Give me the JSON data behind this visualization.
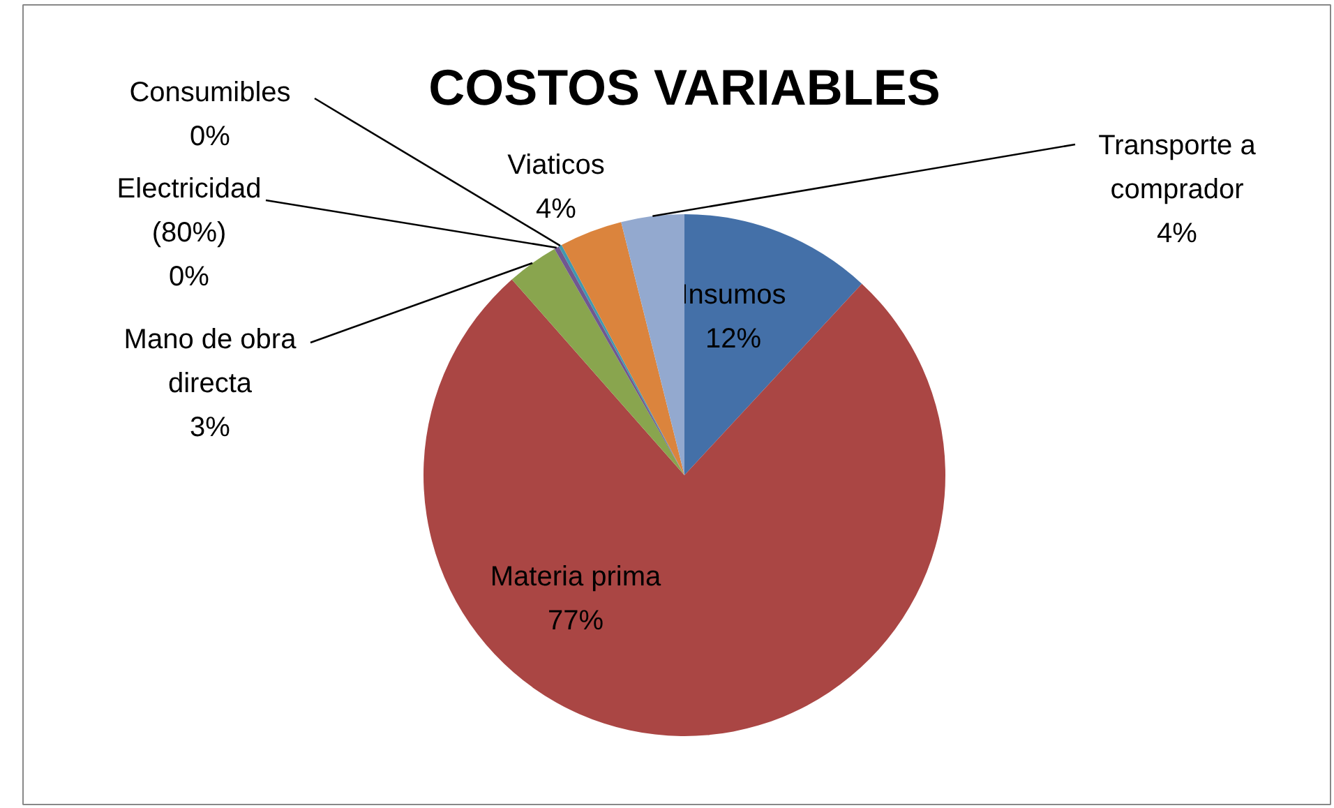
{
  "chart_data": {
    "type": "pie",
    "title": "COSTOS VARIABLES",
    "categories": [
      "Insumos",
      "Materia prima",
      "Mano de obra directa",
      "Electricidad (80%)",
      "Consumibles",
      "Viaticos",
      "Transporte a comprador"
    ],
    "values": [
      11.9,
      76.6,
      3.2,
      0.3,
      0.2,
      3.9,
      3.9
    ],
    "colors": [
      "#4470a8",
      "#aa4644",
      "#89a54e",
      "#71588f",
      "#4198af",
      "#db843d",
      "#93a9cf"
    ],
    "value_labels": [
      "12%",
      "77%",
      "3%",
      "0%",
      "0%",
      "4%",
      "4%"
    ]
  }
}
